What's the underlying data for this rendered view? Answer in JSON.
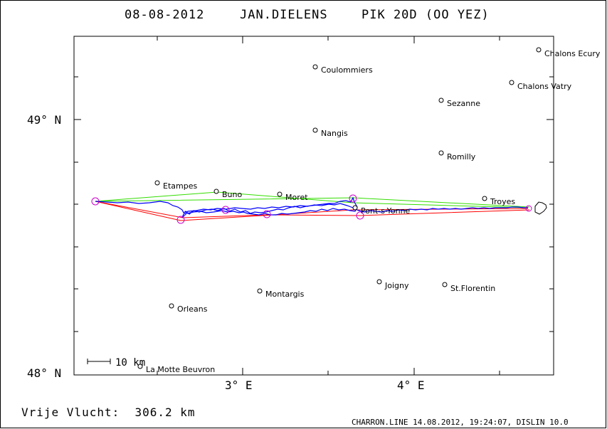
{
  "header": {
    "date": "08-08-2012",
    "pilot": "JAN.DIELENS",
    "glider": "PIK 20D (OO YEZ)"
  },
  "axes": {
    "lat_labels": [
      "49° N",
      "48° N"
    ],
    "lon_labels": [
      "3° E",
      "4° E"
    ]
  },
  "scale_bar": {
    "label": "10 km"
  },
  "places": [
    {
      "name": "Chalons Ecury"
    },
    {
      "name": "Coulommiers"
    },
    {
      "name": "Chalons Vatry"
    },
    {
      "name": "Sezanne"
    },
    {
      "name": "Nangis"
    },
    {
      "name": "Romilly"
    },
    {
      "name": "Etampes"
    },
    {
      "name": "Buno"
    },
    {
      "name": "Moret"
    },
    {
      "name": "Troyes"
    },
    {
      "name": "Pont-s-Yonne"
    },
    {
      "name": "Joigny"
    },
    {
      "name": "Montargis"
    },
    {
      "name": "St.Florentin"
    },
    {
      "name": "Orleans"
    },
    {
      "name": "La Motte Beuvron"
    }
  ],
  "footer": {
    "distance_text": "Vrije Vlucht:  306.2 km",
    "credit": "CHARRON.LINE 14.08.2012, 19:24:07, DISLIN 10.0"
  },
  "colors": {
    "track": "#0000ff",
    "task_green": "#33dd00",
    "task_red": "#ff0000",
    "turnpoint": "#cc00cc"
  }
}
